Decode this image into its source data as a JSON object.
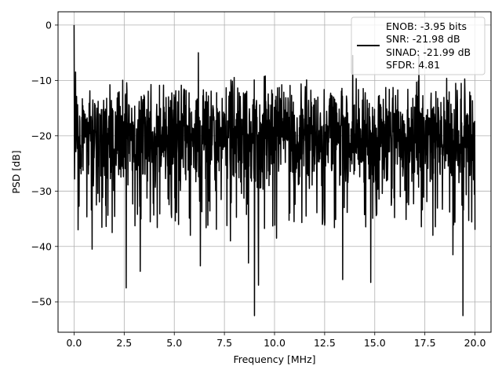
{
  "chart_data": {
    "type": "line",
    "xlabel": "Frequency [MHz]",
    "ylabel": "PSD [dB]",
    "xlim": [
      -0.8,
      20.8
    ],
    "ylim": [
      -55.5,
      2.4
    ],
    "xticks": [
      0.0,
      2.5,
      5.0,
      7.5,
      10.0,
      12.5,
      15.0,
      17.5,
      20.0
    ],
    "xtick_labels": [
      "0.0",
      "2.5",
      "5.0",
      "7.5",
      "10.0",
      "12.5",
      "15.0",
      "17.5",
      "20.0"
    ],
    "yticks": [
      0,
      -10,
      -20,
      -30,
      -40,
      -50
    ],
    "ytick_labels": [
      "0",
      "−10",
      "−20",
      "−30",
      "−40",
      "−50"
    ],
    "grid": true,
    "legend_position": "top-right",
    "legend_lines": [
      "ENOB: -3.95 bits",
      "SNR: -21.98 dB",
      "SINAD: -21.99 dB",
      "SFDR: 4.81"
    ],
    "line_color": "#000000",
    "series": [
      {
        "x_start": 0.0,
        "x_end": 20.0,
        "noise_band": [
          -31.0,
          -9.0
        ],
        "peaks": [
          {
            "x": 0.0,
            "y": 0.0
          },
          {
            "x": 0.08,
            "y": -8.5
          },
          {
            "x": 6.2,
            "y": -5.0
          },
          {
            "x": 13.9,
            "y": -5.5
          },
          {
            "x": 17.2,
            "y": -5.5
          }
        ],
        "troughs": [
          {
            "x": 0.2,
            "y": -37.0
          },
          {
            "x": 0.9,
            "y": -40.5
          },
          {
            "x": 1.9,
            "y": -37.5
          },
          {
            "x": 2.6,
            "y": -47.5
          },
          {
            "x": 3.3,
            "y": -44.5
          },
          {
            "x": 5.8,
            "y": -38.0
          },
          {
            "x": 6.3,
            "y": -43.5
          },
          {
            "x": 7.8,
            "y": -39.0
          },
          {
            "x": 8.7,
            "y": -43.0
          },
          {
            "x": 9.0,
            "y": -52.5
          },
          {
            "x": 9.2,
            "y": -47.0
          },
          {
            "x": 10.1,
            "y": -38.5
          },
          {
            "x": 13.4,
            "y": -46.0
          },
          {
            "x": 14.8,
            "y": -46.5
          },
          {
            "x": 17.9,
            "y": -38.0
          },
          {
            "x": 18.9,
            "y": -41.5
          },
          {
            "x": 19.4,
            "y": -52.5
          },
          {
            "x": 20.0,
            "y": -37.0
          }
        ]
      }
    ]
  }
}
